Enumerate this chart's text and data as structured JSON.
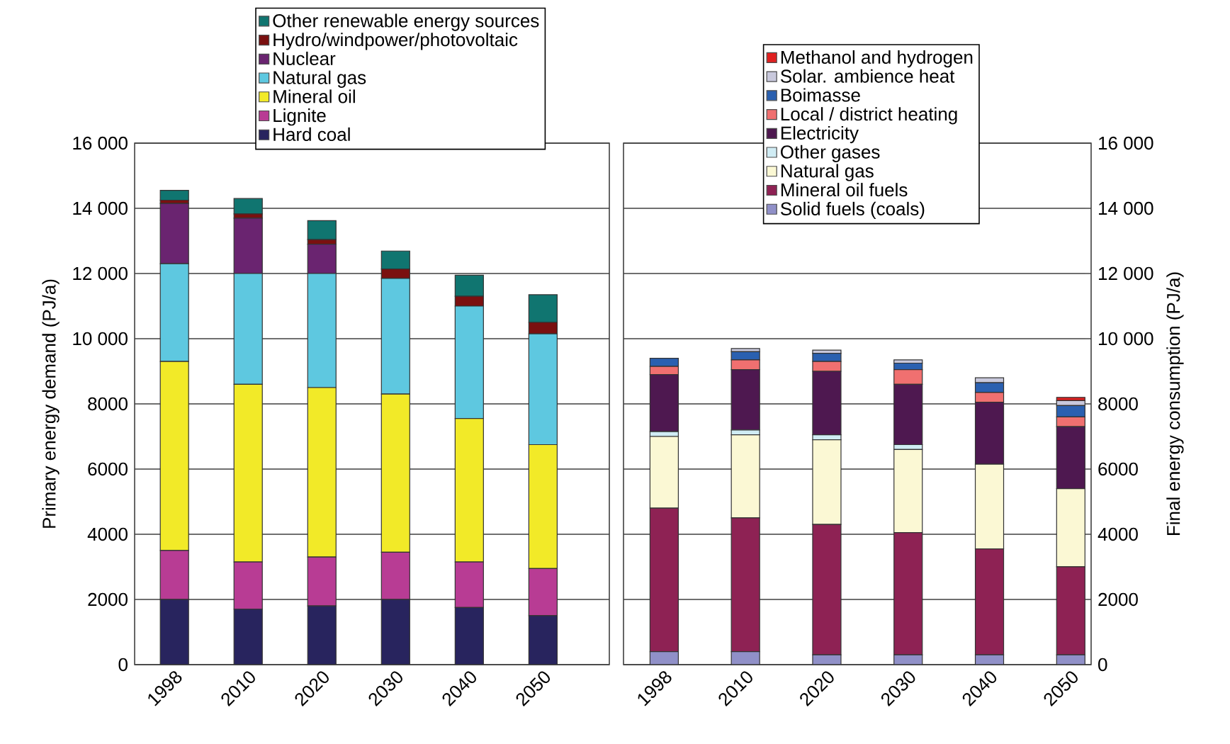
{
  "chart_data": [
    {
      "type": "bar",
      "stacked": true,
      "ylabel": "Primary energy demand (PJ/a)",
      "categories": [
        "1998",
        "2010",
        "2020",
        "2030",
        "2040",
        "2050"
      ],
      "ylim": [
        0,
        16000
      ],
      "yticks": [
        0,
        2000,
        4000,
        6000,
        8000,
        {
          "value": 10000,
          "label": "10 000"
        },
        {
          "value": 12000,
          "label": "12 000"
        },
        {
          "value": 14000,
          "label": "14 000"
        },
        {
          "value": 16000,
          "label": "16 000"
        }
      ],
      "grid": "y",
      "legend": "top",
      "series": [
        {
          "name": "Hard coal",
          "color": "#28245e",
          "values": [
            2000,
            1700,
            1800,
            2000,
            1750,
            1500
          ]
        },
        {
          "name": "Lignite",
          "color": "#b83c94",
          "values": [
            1500,
            1450,
            1500,
            1450,
            1400,
            1450
          ]
        },
        {
          "name": "Mineral oil",
          "color": "#f2ea28",
          "values": [
            5800,
            5450,
            5200,
            4850,
            4400,
            3800
          ]
        },
        {
          "name": "Natural gas",
          "color": "#5ec8e0",
          "values": [
            3000,
            3400,
            3500,
            3550,
            3450,
            3400
          ]
        },
        {
          "name": "Nuclear",
          "color": "#6a2470",
          "values": [
            1850,
            1700,
            900,
            0,
            0,
            0
          ]
        },
        {
          "name": "Hydro/windpower/photovoltaic",
          "color": "#7a1010",
          "values": [
            100,
            130,
            140,
            290,
            300,
            350
          ]
        },
        {
          "name": "Other renewable energy sources",
          "color": "#107570",
          "values": [
            300,
            470,
            580,
            550,
            650,
            850
          ]
        }
      ]
    },
    {
      "type": "bar",
      "stacked": true,
      "ylabel": "Final energy consumption (PJ/a)",
      "categories": [
        "1998",
        "2010",
        "2020",
        "2030",
        "2040",
        "2050"
      ],
      "ylim": [
        0,
        16000
      ],
      "yticks": [
        0,
        2000,
        4000,
        6000,
        8000,
        {
          "value": 10000,
          "label": "10 000"
        },
        {
          "value": 12000,
          "label": "12 000"
        },
        {
          "value": 14000,
          "label": "14 000"
        },
        {
          "value": 16000,
          "label": "16 000"
        }
      ],
      "grid": "y",
      "legend": "top",
      "series": [
        {
          "name": "Solid fuels (coals)",
          "color": "#9090c8",
          "values": [
            400,
            400,
            300,
            300,
            300,
            300
          ]
        },
        {
          "name": "Mineral oil fuels",
          "color": "#8e2254",
          "values": [
            4400,
            4100,
            4000,
            3750,
            3250,
            2700
          ]
        },
        {
          "name": "Natural gas",
          "color": "#fbf8d4",
          "values": [
            2200,
            2550,
            2600,
            2550,
            2600,
            2400
          ]
        },
        {
          "name": "Other gases",
          "color": "#d0ecf4",
          "values": [
            150,
            150,
            150,
            150,
            null,
            0
          ]
        },
        {
          "name": "Electricity",
          "color": "#4e1850",
          "values": [
            1750,
            1850,
            1950,
            1850,
            1900,
            1900
          ]
        },
        {
          "name": "Local / district heating",
          "color": "#f07070",
          "values": [
            250,
            300,
            300,
            450,
            300,
            300
          ]
        },
        {
          "name": "Boimasse",
          "color": "#2a60b0",
          "values": [
            250,
            250,
            250,
            200,
            300,
            350
          ]
        },
        {
          "name": "Solar. ambience heat",
          "color": "#c8c8dc",
          "values": [
            0,
            100,
            100,
            100,
            150,
            150
          ]
        },
        {
          "name": "Methanol and hydrogen",
          "color": "#e02020",
          "values": [
            0,
            0,
            0,
            0,
            0,
            100
          ]
        }
      ]
    }
  ]
}
